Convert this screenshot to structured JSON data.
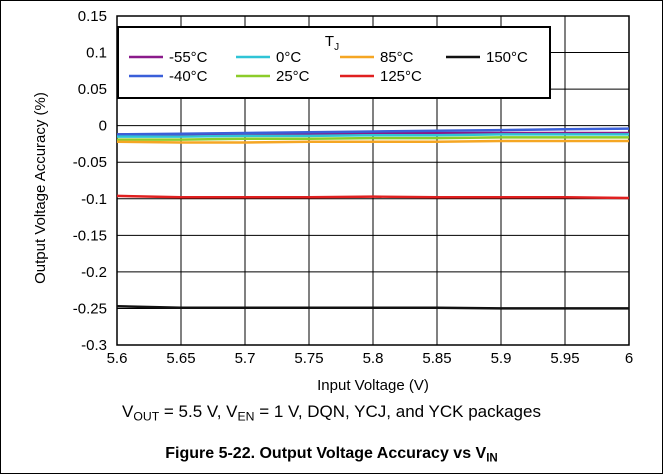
{
  "chart_data": {
    "type": "line",
    "xlabel": "Input Voltage (V)",
    "ylabel": "Output Voltage Accuracy (%)",
    "xlim": [
      5.6,
      6
    ],
    "ylim": [
      -0.3,
      0.15
    ],
    "xticks": [
      5.6,
      5.65,
      5.7,
      5.75,
      5.8,
      5.85,
      5.9,
      5.95,
      6
    ],
    "xtick_labels": [
      "5.6",
      "5.65",
      "5.7",
      "5.75",
      "5.8",
      "5.85",
      "5.9",
      "5.95",
      "6"
    ],
    "yticks": [
      0.15,
      0.1,
      0.05,
      0,
      -0.05,
      -0.1,
      -0.15,
      -0.2,
      -0.25,
      -0.3
    ],
    "ytick_labels": [
      "0.15",
      "0.1",
      "0.05",
      "0",
      "-0.05",
      "-0.1",
      "-0.15",
      "-0.2",
      "-0.25",
      "-0.3"
    ],
    "grid": true,
    "legend_title": "T",
    "legend_title_sub": "J",
    "legend_position": "top-right",
    "x": [
      5.6,
      5.65,
      5.7,
      5.75,
      5.8,
      5.85,
      5.9,
      5.95,
      6
    ],
    "series": [
      {
        "name": "-55°C",
        "color": "#8b1a8b",
        "values": [
          -0.012,
          -0.012,
          -0.011,
          -0.011,
          -0.01,
          -0.01,
          -0.01,
          -0.01,
          -0.01
        ]
      },
      {
        "name": "-40°C",
        "color": "#3a5fd9",
        "values": [
          -0.012,
          -0.011,
          -0.01,
          -0.009,
          -0.008,
          -0.007,
          -0.006,
          -0.005,
          -0.004
        ]
      },
      {
        "name": "0°C",
        "color": "#2fc4d6",
        "values": [
          -0.015,
          -0.015,
          -0.014,
          -0.014,
          -0.013,
          -0.013,
          -0.012,
          -0.012,
          -0.012
        ]
      },
      {
        "name": "25°C",
        "color": "#8ccc2a",
        "values": [
          -0.019,
          -0.019,
          -0.018,
          -0.018,
          -0.017,
          -0.017,
          -0.016,
          -0.016,
          -0.016
        ]
      },
      {
        "name": "85°C",
        "color": "#f5a623",
        "values": [
          -0.022,
          -0.023,
          -0.023,
          -0.022,
          -0.022,
          -0.022,
          -0.021,
          -0.021,
          -0.021
        ]
      },
      {
        "name": "125°C",
        "color": "#e02020",
        "values": [
          -0.096,
          -0.098,
          -0.098,
          -0.098,
          -0.097,
          -0.098,
          -0.098,
          -0.098,
          -0.099
        ]
      },
      {
        "name": "150°C",
        "color": "#111111",
        "values": [
          -0.247,
          -0.249,
          -0.249,
          -0.249,
          -0.249,
          -0.249,
          -0.25,
          -0.25,
          -0.25
        ]
      }
    ]
  },
  "caption": {
    "cond_vout": "V",
    "cond_vout_sub": "OUT",
    "cond_vout_rest": " = 5.5 V, V",
    "cond_ven_sub": "EN",
    "cond_rest": " = 1 V, DQN, YCJ, and YCK packages",
    "figure_title": "Figure 5-22. Output Voltage Accuracy vs V",
    "figure_title_sub": "IN"
  }
}
